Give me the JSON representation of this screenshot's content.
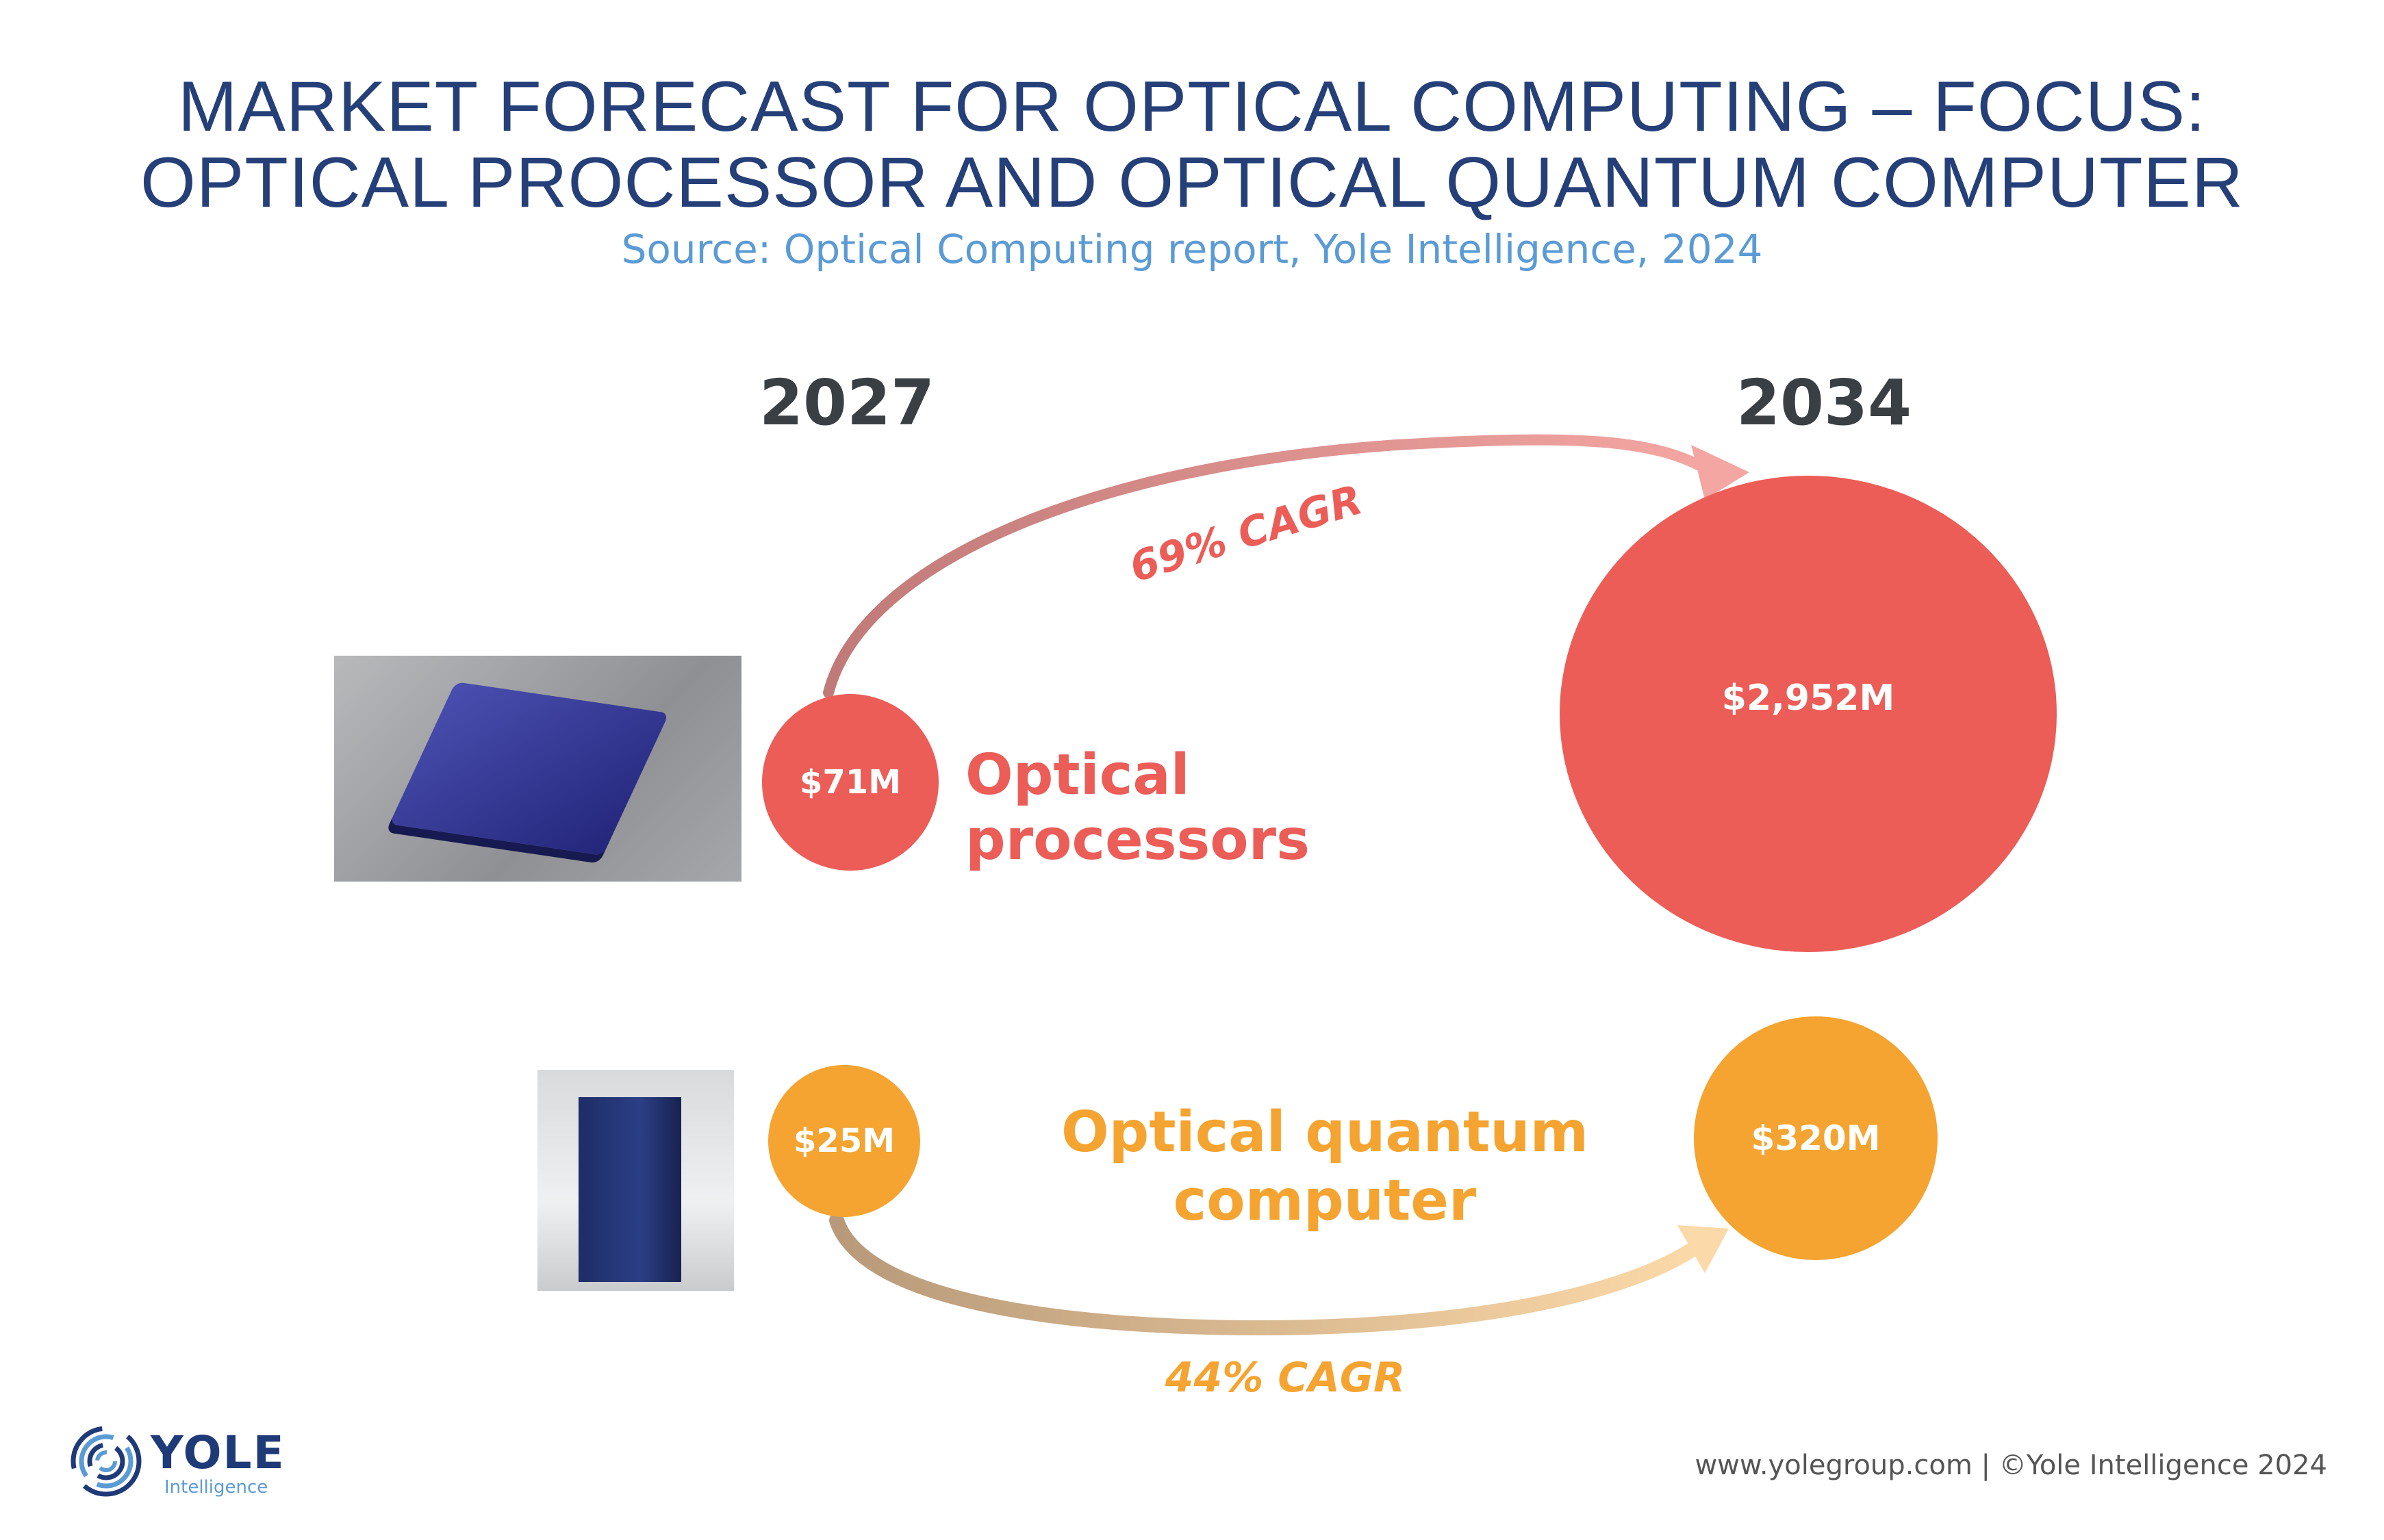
{
  "title": {
    "line1": "MARKET FORECAST FOR OPTICAL COMPUTING – FOCUS:",
    "line2": "OPTICAL PROCESSOR AND OPTICAL QUANTUM COMPUTER",
    "source": "Source: Optical Computing report, Yole Intelligence, 2024"
  },
  "years": {
    "start": "2027",
    "end": "2034"
  },
  "segments": [
    {
      "name": "Optical processors",
      "value_2027": "$71M",
      "value_2034": "$2,952M",
      "cagr": "69% CAGR",
      "color": "#ec5d57"
    },
    {
      "name_line1": "Optical quantum",
      "name_line2": "computer",
      "value_2027": "$25M",
      "value_2034": "$320M",
      "cagr": "44% CAGR",
      "color": "#f5a431"
    }
  ],
  "logo": {
    "brand": "YOLE",
    "sub": "Intelligence"
  },
  "footer": "www.yolegroup.com | ©Yole Intelligence 2024"
}
